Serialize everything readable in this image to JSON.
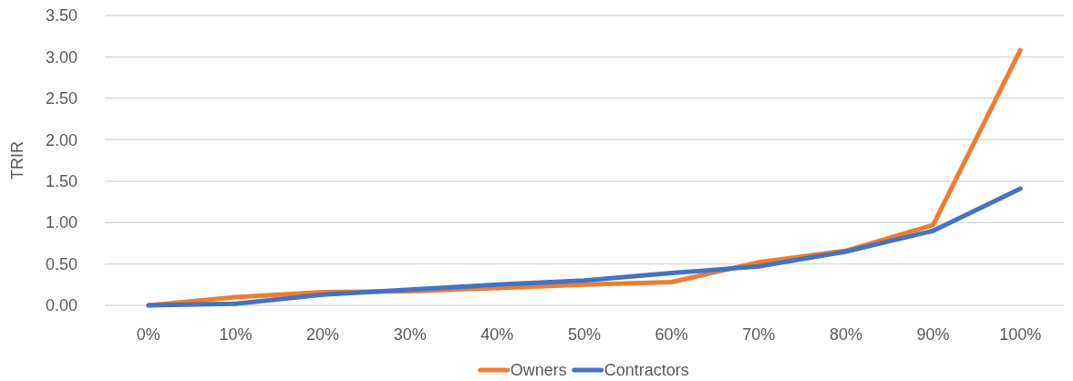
{
  "chart_data": {
    "type": "line",
    "ylabel": "TRIR",
    "categories": [
      "0%",
      "10%",
      "20%",
      "30%",
      "40%",
      "50%",
      "60%",
      "70%",
      "80%",
      "90%",
      "100%"
    ],
    "series": [
      {
        "name": "Owners",
        "color": "#ed7d31",
        "values": [
          0,
          0.1,
          0.16,
          0.17,
          0.21,
          0.25,
          0.28,
          0.52,
          0.66,
          0.97,
          3.08
        ]
      },
      {
        "name": "Contractors",
        "color": "#4472c4",
        "values": [
          0,
          0.02,
          0.13,
          0.19,
          0.25,
          0.3,
          0.39,
          0.47,
          0.65,
          0.9,
          1.41
        ]
      }
    ],
    "ylim": [
      0,
      3.5
    ],
    "yticks": [
      {
        "value": 0,
        "label": "0.00"
      },
      {
        "value": 0.5,
        "label": "0.50"
      },
      {
        "value": 1,
        "label": "1.00"
      },
      {
        "value": 1.5,
        "label": "1.50"
      },
      {
        "value": 2,
        "label": "2.00"
      },
      {
        "value": 2.5,
        "label": "2.50"
      },
      {
        "value": 3,
        "label": "3.00"
      },
      {
        "value": 3.5,
        "label": "3.50"
      }
    ],
    "grid": "y",
    "legend": "bottom",
    "marker": "none",
    "line_style": "solid"
  }
}
